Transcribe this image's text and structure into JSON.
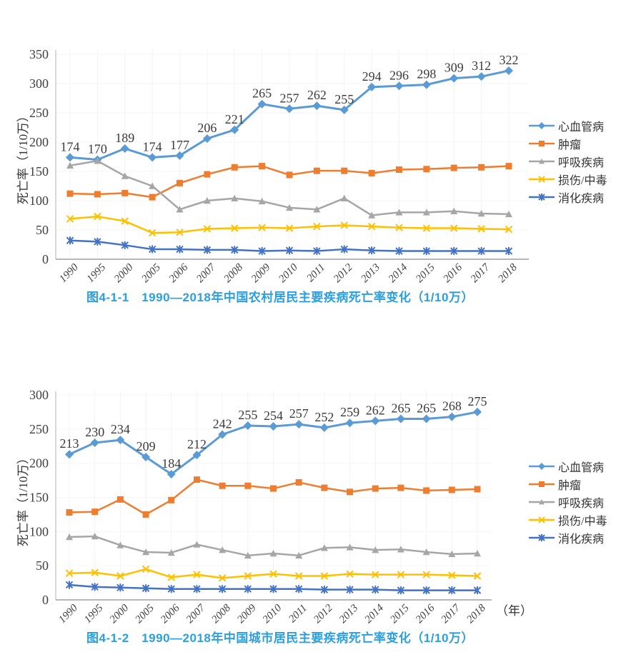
{
  "page": {
    "background": "#ffffff"
  },
  "chart_data": [
    {
      "type": "line",
      "id": "rural",
      "title": "图4-1-1　1990—2018年中国农村居民主要疾病死亡率变化（1/10万）",
      "title_color": "#2b9fdf",
      "ylabel": "死亡率（1/10万）",
      "xlabel": "",
      "categories": [
        "1990",
        "1995",
        "2000",
        "2005",
        "2006",
        "2007",
        "2008",
        "2009",
        "2010",
        "2011",
        "2012",
        "2013",
        "2014",
        "2015",
        "2016",
        "2017",
        "2018"
      ],
      "ylim": [
        0,
        350
      ],
      "ytick_step": 50,
      "grid": "faint",
      "legend_position": "right",
      "axis_color": "#bfbfbf",
      "series": [
        {
          "name": "心血管病",
          "color": "#5b9bd5",
          "marker": "diamond",
          "data_labels": true,
          "values": [
            174,
            170,
            189,
            174,
            177,
            206,
            221,
            265,
            257,
            262,
            255,
            294,
            296,
            298,
            309,
            312,
            322
          ]
        },
        {
          "name": "肿瘤",
          "color": "#ed7d31",
          "marker": "square",
          "data_labels": false,
          "values": [
            112,
            111,
            113,
            106,
            130,
            145,
            157,
            159,
            144,
            151,
            151,
            147,
            153,
            154,
            156,
            157,
            159
          ]
        },
        {
          "name": "呼吸疾病",
          "color": "#a6a6a6",
          "marker": "triangle",
          "data_labels": false,
          "values": [
            160,
            168,
            142,
            125,
            85,
            100,
            104,
            99,
            88,
            85,
            104,
            75,
            80,
            80,
            82,
            78,
            77
          ]
        },
        {
          "name": "损伤/中毒",
          "color": "#ffc000",
          "marker": "x",
          "data_labels": false,
          "values": [
            69,
            73,
            65,
            45,
            46,
            52,
            53,
            54,
            53,
            56,
            58,
            56,
            54,
            53,
            53,
            52,
            51
          ]
        },
        {
          "name": "消化疾病",
          "color": "#4472c4",
          "marker": "asterisk",
          "data_labels": false,
          "values": [
            32,
            30,
            24,
            17,
            17,
            16,
            16,
            14,
            15,
            14,
            17,
            15,
            14,
            14,
            14,
            14,
            14
          ]
        }
      ]
    },
    {
      "type": "line",
      "id": "urban",
      "title": "图4-1-2　1990—2018年中国城市居民主要疾病死亡率变化（1/10万）",
      "title_color": "#2b9fdf",
      "ylabel": "死亡率（1/10万）",
      "xlabel": "（年）",
      "categories": [
        "1990",
        "1995",
        "2000",
        "2005",
        "2006",
        "2007",
        "2008",
        "2009",
        "2010",
        "2011",
        "2012",
        "2013",
        "2014",
        "2015",
        "2016",
        "2017",
        "2018"
      ],
      "ylim": [
        0,
        300
      ],
      "ytick_step": 50,
      "grid": "faint",
      "legend_position": "right",
      "axis_color": "#bfbfbf",
      "series": [
        {
          "name": "心血管病",
          "color": "#5b9bd5",
          "marker": "diamond",
          "data_labels": true,
          "values": [
            213,
            230,
            234,
            209,
            184,
            212,
            242,
            255,
            254,
            257,
            252,
            259,
            262,
            265,
            265,
            268,
            275
          ]
        },
        {
          "name": "肿瘤",
          "color": "#ed7d31",
          "marker": "square",
          "data_labels": false,
          "values": [
            128,
            129,
            147,
            125,
            146,
            176,
            167,
            167,
            163,
            172,
            164,
            158,
            163,
            164,
            160,
            161,
            162
          ]
        },
        {
          "name": "呼吸疾病",
          "color": "#a6a6a6",
          "marker": "triangle",
          "data_labels": false,
          "values": [
            92,
            93,
            80,
            70,
            69,
            81,
            73,
            65,
            68,
            65,
            76,
            77,
            73,
            74,
            70,
            67,
            68
          ]
        },
        {
          "name": "损伤/中毒",
          "color": "#ffc000",
          "marker": "x",
          "data_labels": false,
          "values": [
            39,
            40,
            35,
            45,
            33,
            37,
            32,
            35,
            38,
            35,
            35,
            38,
            37,
            37,
            37,
            36,
            35
          ]
        },
        {
          "name": "消化疾病",
          "color": "#4472c4",
          "marker": "asterisk",
          "data_labels": false,
          "values": [
            22,
            19,
            18,
            17,
            16,
            16,
            16,
            16,
            16,
            16,
            15,
            15,
            15,
            14,
            14,
            14,
            14
          ]
        }
      ]
    }
  ]
}
